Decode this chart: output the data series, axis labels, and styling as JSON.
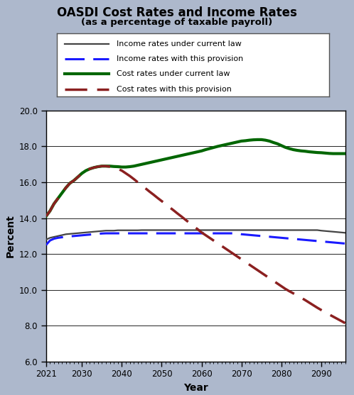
{
  "title": "OASDI Cost Rates and Income Rates",
  "subtitle": "(as a percentage of taxable payroll)",
  "xlabel": "Year",
  "ylabel": "Percent",
  "xlim": [
    2021,
    2096
  ],
  "ylim": [
    6.0,
    20.0
  ],
  "yticks": [
    6.0,
    8.0,
    10.0,
    12.0,
    14.0,
    16.0,
    18.0,
    20.0
  ],
  "xticks": [
    2021,
    2030,
    2040,
    2050,
    2060,
    2070,
    2080,
    2090
  ],
  "bg_outer": "#adb8cc",
  "bg_plot": "#ffffff",
  "legend_labels": [
    "Income rates under current law",
    "Income rates with this provision",
    "Cost rates under current law",
    "Cost rates with this provision"
  ],
  "income_current_law": {
    "color": "#444444",
    "lw": 1.6,
    "linestyle": "solid",
    "x": [
      2021,
      2022,
      2023,
      2024,
      2025,
      2026,
      2027,
      2028,
      2029,
      2030,
      2031,
      2032,
      2033,
      2034,
      2035,
      2036,
      2037,
      2038,
      2039,
      2040,
      2041,
      2042,
      2043,
      2044,
      2045,
      2046,
      2047,
      2048,
      2049,
      2050,
      2051,
      2052,
      2053,
      2054,
      2055,
      2056,
      2057,
      2058,
      2059,
      2060,
      2061,
      2062,
      2063,
      2064,
      2065,
      2066,
      2067,
      2068,
      2069,
      2070,
      2071,
      2072,
      2073,
      2074,
      2075,
      2076,
      2077,
      2078,
      2079,
      2080,
      2081,
      2082,
      2083,
      2084,
      2085,
      2086,
      2087,
      2088,
      2089,
      2090,
      2091,
      2092,
      2093,
      2094,
      2095,
      2096
    ],
    "y": [
      12.8,
      12.9,
      12.95,
      13.0,
      13.05,
      13.1,
      13.12,
      13.14,
      13.16,
      13.18,
      13.2,
      13.22,
      13.24,
      13.26,
      13.28,
      13.3,
      13.3,
      13.3,
      13.32,
      13.32,
      13.32,
      13.32,
      13.32,
      13.32,
      13.33,
      13.33,
      13.33,
      13.33,
      13.33,
      13.33,
      13.33,
      13.33,
      13.33,
      13.33,
      13.33,
      13.33,
      13.33,
      13.33,
      13.33,
      13.33,
      13.33,
      13.33,
      13.33,
      13.33,
      13.33,
      13.33,
      13.33,
      13.33,
      13.33,
      13.33,
      13.33,
      13.33,
      13.33,
      13.33,
      13.33,
      13.33,
      13.33,
      13.33,
      13.33,
      13.33,
      13.33,
      13.33,
      13.33,
      13.33,
      13.33,
      13.33,
      13.33,
      13.33,
      13.33,
      13.3,
      13.28,
      13.26,
      13.24,
      13.22,
      13.2,
      13.18
    ]
  },
  "income_provision": {
    "color": "#1a1aff",
    "lw": 2.2,
    "x": [
      2021,
      2022,
      2023,
      2024,
      2025,
      2026,
      2027,
      2028,
      2029,
      2030,
      2031,
      2032,
      2033,
      2034,
      2035,
      2036,
      2037,
      2038,
      2039,
      2040,
      2041,
      2042,
      2043,
      2044,
      2045,
      2046,
      2047,
      2048,
      2049,
      2050,
      2051,
      2052,
      2053,
      2054,
      2055,
      2056,
      2057,
      2058,
      2059,
      2060,
      2061,
      2062,
      2063,
      2064,
      2065,
      2066,
      2067,
      2068,
      2069,
      2070,
      2071,
      2072,
      2073,
      2074,
      2075,
      2076,
      2077,
      2078,
      2079,
      2080,
      2081,
      2082,
      2083,
      2084,
      2085,
      2086,
      2087,
      2088,
      2089,
      2090,
      2091,
      2092,
      2093,
      2094,
      2095,
      2096
    ],
    "y": [
      12.5,
      12.75,
      12.85,
      12.9,
      12.93,
      12.96,
      12.98,
      13.0,
      13.02,
      13.04,
      13.06,
      13.08,
      13.1,
      13.12,
      13.14,
      13.15,
      13.15,
      13.15,
      13.15,
      13.15,
      13.15,
      13.15,
      13.15,
      13.15,
      13.15,
      13.15,
      13.15,
      13.15,
      13.15,
      13.15,
      13.15,
      13.15,
      13.15,
      13.15,
      13.15,
      13.15,
      13.15,
      13.15,
      13.15,
      13.15,
      13.15,
      13.15,
      13.15,
      13.15,
      13.15,
      13.15,
      13.15,
      13.15,
      13.15,
      13.1,
      13.08,
      13.06,
      13.04,
      13.02,
      13.0,
      12.98,
      12.96,
      12.94,
      12.92,
      12.9,
      12.88,
      12.86,
      12.84,
      12.82,
      12.8,
      12.78,
      12.76,
      12.74,
      12.72,
      12.7,
      12.68,
      12.66,
      12.64,
      12.62,
      12.6,
      12.58
    ]
  },
  "cost_current_law": {
    "color": "#006600",
    "lw": 3.0,
    "linestyle": "solid",
    "x": [
      2021,
      2022,
      2023,
      2024,
      2025,
      2026,
      2027,
      2028,
      2029,
      2030,
      2031,
      2032,
      2033,
      2034,
      2035,
      2036,
      2037,
      2038,
      2039,
      2040,
      2041,
      2042,
      2043,
      2044,
      2045,
      2046,
      2047,
      2048,
      2049,
      2050,
      2051,
      2052,
      2053,
      2054,
      2055,
      2056,
      2057,
      2058,
      2059,
      2060,
      2061,
      2062,
      2063,
      2064,
      2065,
      2066,
      2067,
      2068,
      2069,
      2070,
      2071,
      2072,
      2073,
      2074,
      2075,
      2076,
      2077,
      2078,
      2079,
      2080,
      2081,
      2082,
      2083,
      2084,
      2085,
      2086,
      2087,
      2088,
      2089,
      2090,
      2091,
      2092,
      2093,
      2094,
      2095,
      2096
    ],
    "y": [
      14.1,
      14.4,
      14.8,
      15.1,
      15.4,
      15.7,
      15.95,
      16.1,
      16.3,
      16.5,
      16.65,
      16.75,
      16.82,
      16.87,
      16.9,
      16.9,
      16.9,
      16.88,
      16.87,
      16.85,
      16.85,
      16.87,
      16.9,
      16.95,
      17.0,
      17.05,
      17.1,
      17.15,
      17.2,
      17.25,
      17.3,
      17.35,
      17.4,
      17.45,
      17.5,
      17.55,
      17.6,
      17.65,
      17.7,
      17.75,
      17.82,
      17.88,
      17.94,
      18.0,
      18.05,
      18.1,
      18.15,
      18.2,
      18.25,
      18.3,
      18.32,
      18.35,
      18.37,
      18.38,
      18.38,
      18.35,
      18.3,
      18.22,
      18.15,
      18.05,
      17.95,
      17.88,
      17.82,
      17.78,
      17.75,
      17.73,
      17.7,
      17.68,
      17.66,
      17.65,
      17.63,
      17.61,
      17.6,
      17.6,
      17.6,
      17.6
    ]
  },
  "cost_provision": {
    "color": "#8b2020",
    "lw": 2.5,
    "x": [
      2021,
      2022,
      2023,
      2024,
      2025,
      2026,
      2027,
      2028,
      2029,
      2030,
      2031,
      2032,
      2033,
      2034,
      2035,
      2036,
      2037,
      2038,
      2039,
      2040,
      2041,
      2042,
      2043,
      2044,
      2045,
      2046,
      2047,
      2048,
      2049,
      2050,
      2051,
      2052,
      2053,
      2054,
      2055,
      2056,
      2057,
      2058,
      2059,
      2060,
      2061,
      2062,
      2063,
      2064,
      2065,
      2066,
      2067,
      2068,
      2069,
      2070,
      2071,
      2072,
      2073,
      2074,
      2075,
      2076,
      2077,
      2078,
      2079,
      2080,
      2081,
      2082,
      2083,
      2084,
      2085,
      2086,
      2087,
      2088,
      2089,
      2090,
      2091,
      2092,
      2093,
      2094,
      2095,
      2096
    ],
    "y": [
      14.1,
      14.4,
      14.8,
      15.1,
      15.4,
      15.7,
      15.95,
      16.1,
      16.3,
      16.5,
      16.65,
      16.75,
      16.82,
      16.87,
      16.9,
      16.9,
      16.87,
      16.82,
      16.75,
      16.65,
      16.5,
      16.35,
      16.18,
      16.0,
      15.82,
      15.65,
      15.47,
      15.3,
      15.12,
      14.95,
      14.78,
      14.6,
      14.43,
      14.25,
      14.08,
      13.9,
      13.73,
      13.55,
      13.38,
      13.2,
      13.05,
      12.9,
      12.75,
      12.6,
      12.45,
      12.3,
      12.15,
      12.0,
      11.85,
      11.7,
      11.55,
      11.4,
      11.25,
      11.1,
      10.95,
      10.8,
      10.65,
      10.5,
      10.35,
      10.2,
      10.05,
      9.92,
      9.8,
      9.68,
      9.55,
      9.42,
      9.28,
      9.14,
      9.0,
      8.87,
      8.74,
      8.62,
      8.5,
      8.38,
      8.26,
      8.14
    ]
  }
}
